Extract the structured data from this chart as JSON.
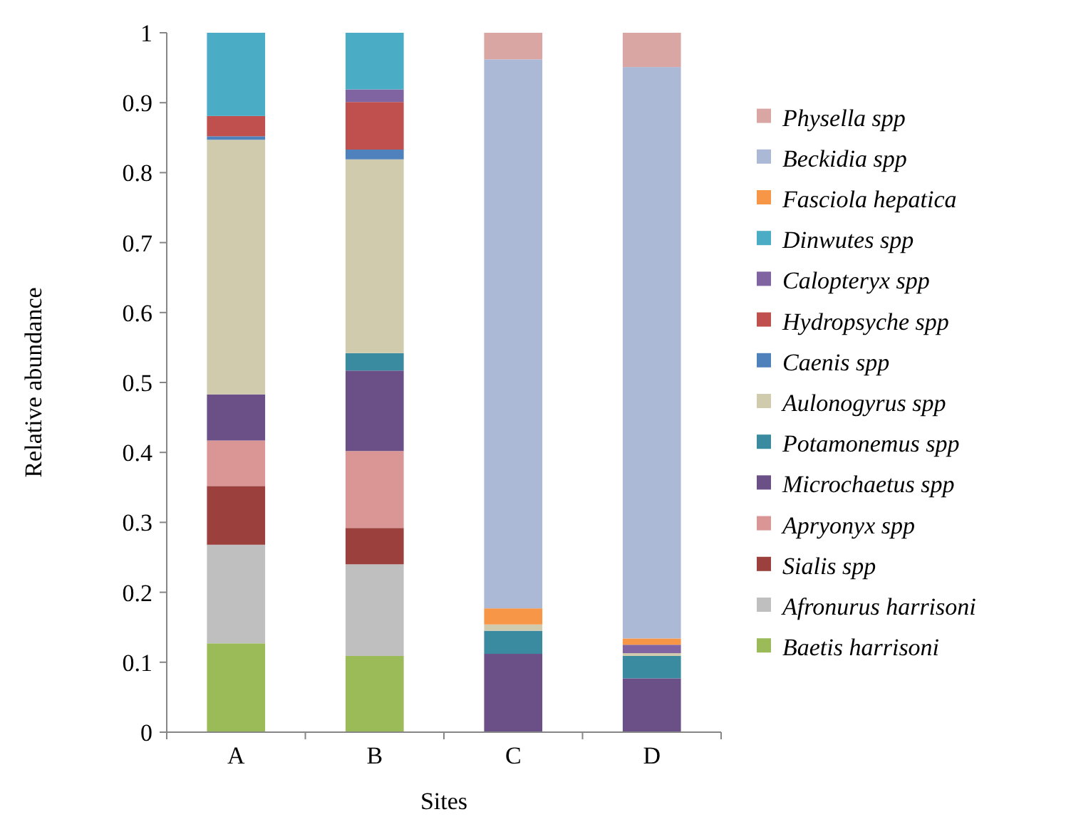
{
  "chart_data": {
    "type": "bar",
    "stacked": true,
    "xlabel": "Sites",
    "ylabel": "Relative abundance",
    "categories": [
      "A",
      "B",
      "C",
      "D"
    ],
    "series": [
      {
        "name": "Baetis harrisoni",
        "color": "#9bbb59",
        "values": [
          0.127,
          0.109,
          0,
          0
        ]
      },
      {
        "name": "Afronurus harrisoni",
        "color": "#bfbfbf",
        "values": [
          0.141,
          0.131,
          0,
          0
        ]
      },
      {
        "name": "Sialis spp",
        "color": "#9c403e",
        "values": [
          0.084,
          0.052,
          0,
          0
        ]
      },
      {
        "name": "Apryonyx spp",
        "color": "#d99694",
        "values": [
          0.065,
          0.11,
          0,
          0
        ]
      },
      {
        "name": "Microchaetus spp",
        "color": "#6b5088",
        "values": [
          0.066,
          0.115,
          0.112,
          0.077
        ]
      },
      {
        "name": "Potamonemus spp",
        "color": "#3a8aa0",
        "values": [
          0,
          0.025,
          0.033,
          0.032
        ]
      },
      {
        "name": "Aulonogyrus spp",
        "color": "#d0cbad",
        "values": [
          0.364,
          0.277,
          0.009,
          0.004
        ]
      },
      {
        "name": "Caenis spp",
        "color": "#4f81bd",
        "values": [
          0.005,
          0.014,
          0,
          0
        ]
      },
      {
        "name": "Hydropsyche spp",
        "color": "#c0504d",
        "values": [
          0.029,
          0.068,
          0,
          0
        ]
      },
      {
        "name": "Calopteryx spp",
        "color": "#8064a2",
        "values": [
          0,
          0.018,
          0,
          0.012
        ]
      },
      {
        "name": "Dinwutes spp",
        "color": "#4bacc6",
        "values": [
          0.119,
          0.081,
          0,
          0
        ]
      },
      {
        "name": "Fasciola hepatica",
        "color": "#f79646",
        "values": [
          0,
          0,
          0.023,
          0.009
        ]
      },
      {
        "name": "Beckidia spp",
        "color": "#abb9d6",
        "values": [
          0,
          0,
          0.785,
          0.817
        ]
      },
      {
        "name": "Physella spp",
        "color": "#d9a6a4",
        "values": [
          0,
          0,
          0.038,
          0.049
        ]
      }
    ],
    "ylim": [
      0,
      1
    ],
    "yticks": [
      0,
      0.1,
      0.2,
      0.3,
      0.4,
      0.5,
      0.6,
      0.7,
      0.8,
      0.9,
      1
    ],
    "grid": false,
    "legend": "right"
  }
}
